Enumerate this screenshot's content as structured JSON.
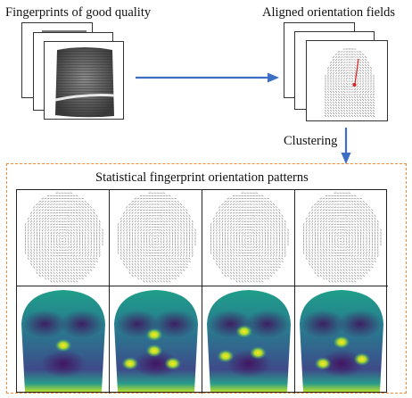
{
  "labels": {
    "left_title": "Fingerprints of good quality",
    "right_title": "Aligned orientation fields",
    "clustering": "Clustering",
    "panel_title": "Statistical fingerprint orientation patterns"
  },
  "colors": {
    "arrow": "#3c6fc4",
    "panel_border": "#f08a3c",
    "orientation_mark": "#8c8c8c",
    "highlight_line": "#e02020"
  },
  "patterns": [
    {
      "id": 1,
      "hot_spots": [
        [
          0.5,
          0.55
        ]
      ]
    },
    {
      "id": 2,
      "hot_spots": [
        [
          0.48,
          0.45
        ],
        [
          0.48,
          0.6
        ],
        [
          0.22,
          0.72
        ],
        [
          0.68,
          0.72
        ]
      ]
    },
    {
      "id": 3,
      "hot_spots": [
        [
          0.45,
          0.42
        ],
        [
          0.25,
          0.65
        ],
        [
          0.6,
          0.62
        ]
      ]
    },
    {
      "id": 4,
      "hot_spots": [
        [
          0.5,
          0.52
        ],
        [
          0.72,
          0.68
        ],
        [
          0.3,
          0.72
        ]
      ]
    }
  ]
}
